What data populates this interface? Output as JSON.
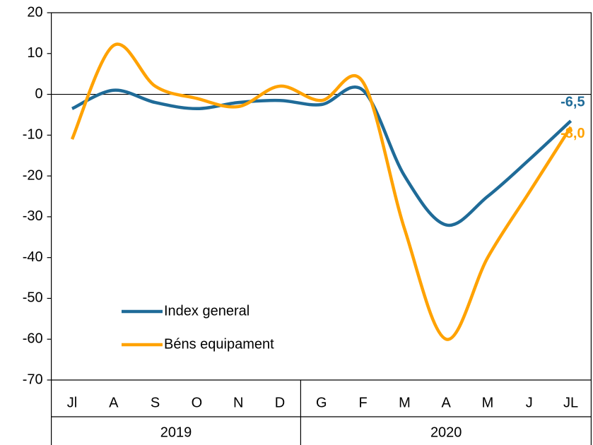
{
  "chart_data": {
    "type": "line",
    "categories": [
      "Jl",
      "A",
      "S",
      "O",
      "N",
      "D",
      "G",
      "F",
      "M",
      "A",
      "M",
      "J",
      "JL"
    ],
    "year_groups": [
      {
        "label": "2019",
        "span": 6
      },
      {
        "label": "2020",
        "span": 7
      }
    ],
    "series": [
      {
        "name": "Index general",
        "color": "#1f6b98",
        "values": [
          -3.5,
          1,
          -2,
          -3.5,
          -2,
          -1.5,
          -2.5,
          1,
          -20,
          -32,
          -25,
          -16,
          -6.5
        ],
        "value_labels": [
          null,
          null,
          null,
          null,
          null,
          null,
          null,
          null,
          null,
          null,
          null,
          null,
          "-6,5"
        ]
      },
      {
        "name": "Béns equipament",
        "color": "#ffa200",
        "values": [
          -11,
          12,
          2,
          -1,
          -3,
          2,
          -1.5,
          3,
          -33,
          -60,
          -40,
          -24,
          -8
        ],
        "value_labels": [
          null,
          null,
          null,
          null,
          null,
          null,
          null,
          null,
          null,
          null,
          null,
          null,
          "-8,0"
        ]
      }
    ],
    "ylim": [
      -70,
      20
    ],
    "yticks": [
      -70,
      -60,
      -50,
      -40,
      -30,
      -20,
      -10,
      0,
      10,
      20
    ],
    "grid": false
  }
}
